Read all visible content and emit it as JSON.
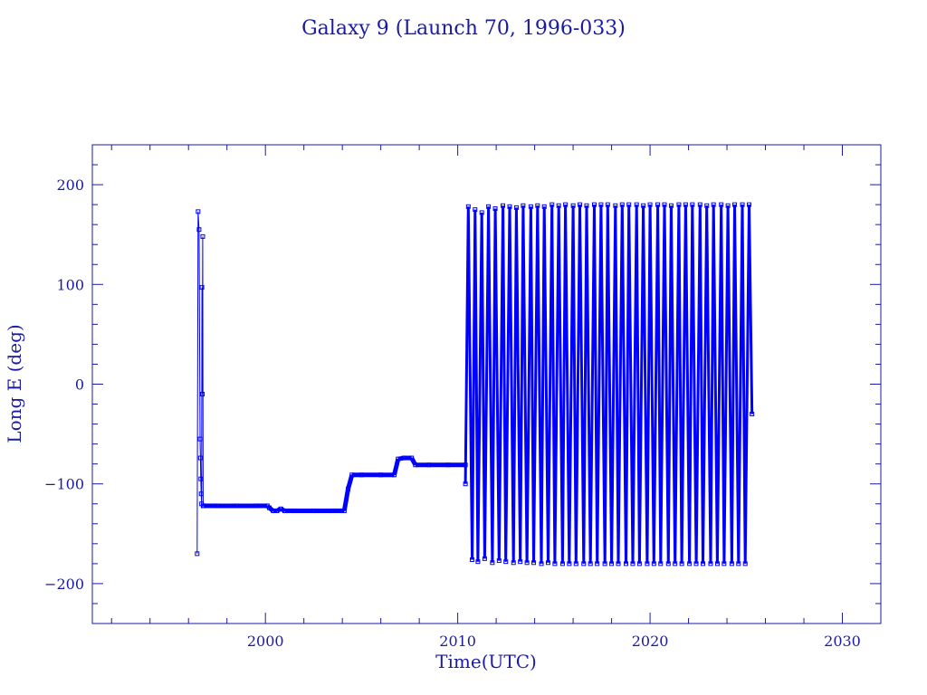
{
  "chart_data": {
    "type": "line",
    "title": "Galaxy 9 (Launch 70, 1996-033)",
    "xlabel": "Time(UTC)",
    "ylabel": "Long E (deg)",
    "xlim": [
      1991,
      2032
    ],
    "ylim": [
      -240,
      240
    ],
    "x_ticks": [
      2000,
      2010,
      2020,
      2030
    ],
    "x_tick_labels": [
      "2000",
      "2010",
      "2020",
      "2030"
    ],
    "y_ticks": [
      -200,
      -100,
      0,
      100,
      200
    ],
    "y_tick_labels": [
      "−200",
      "−100",
      "0",
      "100",
      "200"
    ],
    "grid": false,
    "legend": "none",
    "line_color": "#0000ff",
    "axis_color": "#1a1aa6",
    "series": [
      {
        "x": [
          1996.45,
          1996.5,
          1996.55,
          1996.6,
          1996.62,
          1996.64,
          1996.66,
          1996.68,
          1996.7,
          1996.72,
          1996.74,
          1996.76,
          1996.78,
          1996.8,
          1997.5,
          1998.5,
          1999.5,
          2000.1,
          2000.2,
          2000.4,
          2000.6,
          2000.8,
          2001.0,
          2001.5,
          2002.5,
          2003.5,
          2004.1,
          2004.3,
          2004.5,
          2005.0,
          2006.0,
          2006.7,
          2006.9,
          2007.2,
          2007.6,
          2007.8,
          2008.5,
          2009.5,
          2010.4
        ],
        "y": [
          -170,
          173,
          155,
          -55,
          -74,
          -95,
          -110,
          -120,
          97,
          -10,
          148,
          -122,
          -122,
          -122,
          -122,
          -122,
          -122,
          -122,
          -124,
          -127,
          -127,
          -125,
          -127,
          -127,
          -127,
          -127,
          -127,
          -105,
          -91,
          -91,
          -91,
          -91,
          -75,
          -74,
          -74,
          -81,
          -81,
          -81,
          -81
        ]
      },
      {
        "x": [
          2010.4,
          2010.55,
          2010.75,
          2010.9,
          2011.05,
          2011.25,
          2011.4,
          2011.6,
          2011.8,
          2011.95,
          2012.15,
          2012.35,
          2012.5,
          2012.7,
          2012.9,
          2013.05,
          2013.25,
          2013.4,
          2013.6,
          2013.8,
          2013.95,
          2014.15,
          2014.35,
          2014.5,
          2014.7,
          2014.9,
          2015.05,
          2015.25,
          2015.45,
          2015.6,
          2015.8,
          2016.0,
          2016.15,
          2016.35,
          2016.55,
          2016.7,
          2016.9,
          2017.1,
          2017.25,
          2017.45,
          2017.65,
          2017.8,
          2018.0,
          2018.2,
          2018.35,
          2018.55,
          2018.75,
          2018.9,
          2019.1,
          2019.3,
          2019.45,
          2019.65,
          2019.85,
          2020.0,
          2020.2,
          2020.4,
          2020.55,
          2020.75,
          2020.95,
          2021.1,
          2021.3,
          2021.5,
          2021.65,
          2021.85,
          2022.05,
          2022.2,
          2022.4,
          2022.6,
          2022.75,
          2022.95,
          2023.15,
          2023.3,
          2023.5,
          2023.7,
          2023.85,
          2024.05,
          2024.25,
          2024.4,
          2024.6,
          2024.8,
          2024.95,
          2025.15,
          2025.3
        ],
        "y": [
          -100,
          178,
          -176,
          175,
          -178,
          172,
          -175,
          178,
          -179,
          176,
          -177,
          179,
          -178,
          178,
          -179,
          177,
          -178,
          179,
          -179,
          178,
          -179,
          179,
          -180,
          178,
          -179,
          180,
          -180,
          179,
          -180,
          180,
          -180,
          179,
          -180,
          180,
          -180,
          179,
          -180,
          180,
          -180,
          180,
          -180,
          180,
          -180,
          179,
          -180,
          180,
          -180,
          180,
          -180,
          180,
          -180,
          179,
          -180,
          180,
          -180,
          180,
          -180,
          180,
          -180,
          179,
          -180,
          180,
          -180,
          180,
          -180,
          180,
          -180,
          180,
          -180,
          179,
          -180,
          180,
          -180,
          180,
          -180,
          179,
          -180,
          180,
          -180,
          180,
          -180,
          180,
          -30
        ]
      }
    ]
  }
}
